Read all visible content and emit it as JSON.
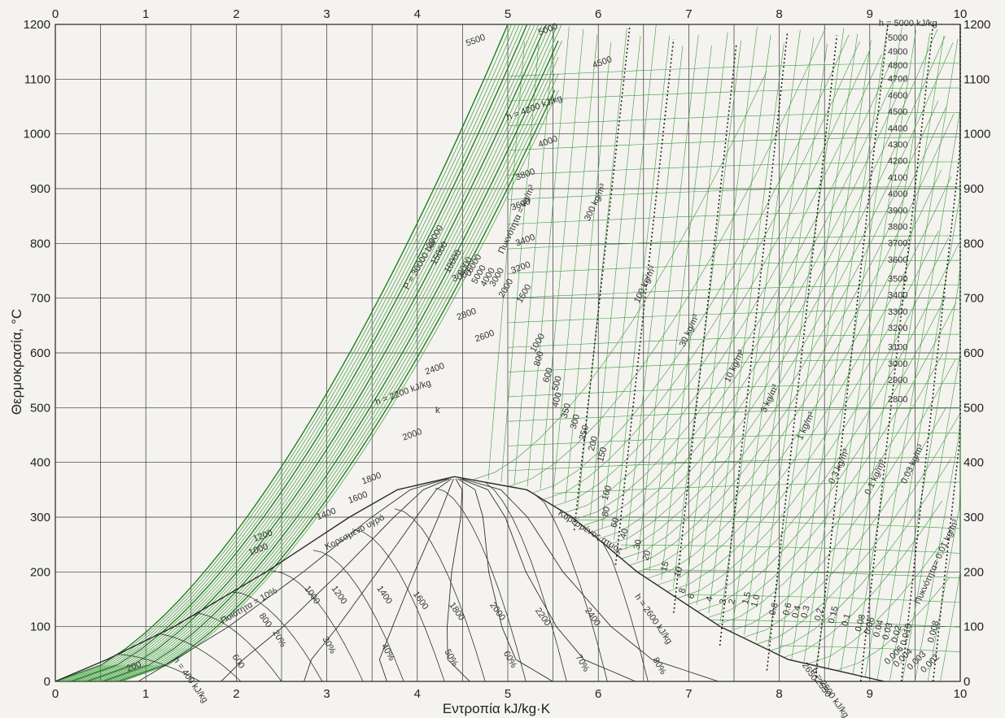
{
  "chart_data": {
    "type": "line",
    "title": "",
    "xlabel": "Εντροπία kJ/kg·K",
    "ylabel": "Θερμοκρασία, °C",
    "xlim": [
      0,
      10
    ],
    "ylim": [
      0,
      1200
    ],
    "x_ticks": [
      "0",
      "1",
      "2",
      "3",
      "4",
      "5",
      "6",
      "7",
      "8",
      "9",
      "10"
    ],
    "y_ticks": [
      "0",
      "100",
      "200",
      "300",
      "400",
      "500",
      "600",
      "700",
      "800",
      "900",
      "1000",
      "1100",
      "1200"
    ],
    "grid": true,
    "saturation_dome": {
      "critical_point": {
        "s": 4.41,
        "T": 374
      },
      "saturated_liquid_label": "Κορεσμένο υγρό",
      "saturated_vapor_label": "Κορεσμένος ατμός",
      "liquid_line": [
        [
          0,
          0
        ],
        [
          0.57,
          40
        ],
        [
          1.31,
          100
        ],
        [
          2.33,
          200
        ],
        [
          3.25,
          300
        ],
        [
          3.78,
          350
        ],
        [
          4.41,
          374
        ]
      ],
      "vapor_line": [
        [
          4.41,
          374
        ],
        [
          5.21,
          350
        ],
        [
          5.71,
          300
        ],
        [
          6.43,
          200
        ],
        [
          7.35,
          100
        ],
        [
          8.1,
          40
        ],
        [
          9.16,
          0
        ]
      ]
    },
    "quality_lines": {
      "values": [
        10,
        20,
        30,
        40,
        50,
        60,
        70,
        80
      ],
      "labels": [
        "Ποιότητα = 10%",
        "20%",
        "30%",
        "40%",
        "50%",
        "60%",
        "70%",
        "80%"
      ]
    },
    "enthalpy_lines": {
      "labels": [
        "h = 400 kJ/kg",
        "600",
        "800",
        "1000",
        "1200",
        "1400",
        "1600",
        "1800",
        "2000",
        "2200",
        "2400",
        "h = 2600 kJ/kg",
        "2650",
        "h = 2600 kJ/kg",
        "2550",
        "200",
        "1000",
        "1200",
        "1400",
        "1600",
        "1800",
        "2000",
        "h = 2200 kJ/kg",
        "2400",
        "2600",
        "2800",
        "3000",
        "3200",
        "3400",
        "3600",
        "3800",
        "4000",
        "h = 4200 kJ/kg",
        "4500",
        "5000",
        "5500",
        "h = 5000 kJ/kg",
        "5000",
        "4900",
        "4800",
        "4700",
        "4600",
        "4500",
        "4400",
        "4300",
        "4200",
        "4100",
        "4000",
        "3900",
        "3800",
        "3700",
        "3600",
        "3500",
        "3400",
        "3300",
        "3200",
        "3100",
        "3000",
        "2900",
        "2800"
      ]
    },
    "pressure_lines": {
      "labels": [
        "P = 30000 bar",
        "20000",
        "15000",
        "10000",
        "8000",
        "6000",
        "5000",
        "4000",
        "3000",
        "2000",
        "1500",
        "1000",
        "800",
        "600",
        "500",
        "400",
        "350",
        "300",
        "250",
        "200",
        "150",
        "100",
        "80",
        "60",
        "40",
        "30",
        "20",
        "15",
        "10",
        "8",
        "6",
        "4",
        "3",
        "2",
        "1.5",
        "1.0",
        "0.8",
        "0.6",
        "0.4",
        "0.3",
        "0.2",
        "0.15",
        "0.1",
        "0.08",
        "0.06",
        "0.04",
        "0.03",
        "0.02",
        "0.015",
        "0.008",
        "0.006",
        "0.004",
        "0.003",
        "0.002",
        "k"
      ]
    },
    "density_lines": {
      "labels": [
        "Πυκνότητα = kg/m³",
        "300 kg/m³",
        "100 kg/m³",
        "30 kg/m³",
        "10 kg/m³",
        "3 kg/m³",
        "1 kg/m³",
        "0.3 kg/m³",
        "0.1 kg/m³",
        "0.03 kg/m³",
        "Πυκνότητα= 0.01 kg/m³"
      ]
    },
    "right_axis_enthalpy_ticks": [
      "h = 5000 kJ/kg",
      "5000",
      "4900",
      "4800",
      "4700",
      "4600",
      "4500",
      "4400",
      "4300",
      "4200",
      "4100",
      "4000",
      "3900",
      "3800",
      "3700",
      "3600",
      "3500",
      "3400",
      "3300",
      "3200",
      "3100",
      "3000",
      "2900",
      "2800"
    ],
    "colors": {
      "grid": "#333333",
      "superheated_mesh": "#3f9a3f",
      "dome": "#2a2a2a",
      "dotted_density": "#222222"
    }
  }
}
